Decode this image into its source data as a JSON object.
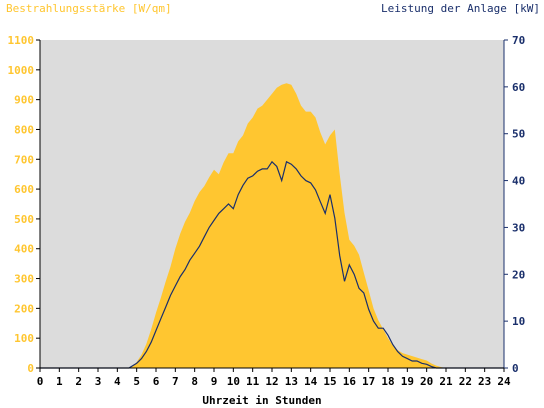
{
  "chart_data": {
    "type": "area",
    "left_axis_title": "Bestrahlungsstärke [W/qm]",
    "right_axis_title": "Leistung der Anlage [kW]",
    "xlabel": "Uhrzeit in Stunden",
    "x_ticks": [
      "0",
      "1",
      "2",
      "3",
      "4",
      "5",
      "6",
      "7",
      "8",
      "9",
      "10",
      "11",
      "12",
      "13",
      "14",
      "15",
      "16",
      "17",
      "18",
      "19",
      "20",
      "21",
      "22",
      "23",
      "24"
    ],
    "y_left_ticks": [
      "0",
      "100",
      "200",
      "300",
      "400",
      "500",
      "600",
      "700",
      "800",
      "900",
      "1000",
      "1100"
    ],
    "y_right_ticks": [
      "0",
      "10",
      "20",
      "30",
      "40",
      "50",
      "60",
      "70"
    ],
    "xlim": [
      0,
      24
    ],
    "ylim_left": [
      0,
      1100
    ],
    "ylim_right": [
      0,
      70
    ],
    "grid": false,
    "plot_background": "#dcdcdc",
    "series": [
      {
        "name": "Bestrahlungsstärke",
        "axis": "left",
        "style": "area",
        "color": "#ffc630",
        "x": [
          0,
          4.5,
          4.8,
          5.0,
          5.25,
          5.5,
          5.75,
          6.0,
          6.25,
          6.5,
          6.75,
          7.0,
          7.25,
          7.5,
          7.75,
          8.0,
          8.25,
          8.5,
          8.75,
          9.0,
          9.25,
          9.5,
          9.75,
          10.0,
          10.25,
          10.5,
          10.75,
          11.0,
          11.25,
          11.5,
          11.75,
          12.0,
          12.25,
          12.5,
          12.75,
          13.0,
          13.25,
          13.5,
          13.75,
          14.0,
          14.25,
          14.5,
          14.75,
          15.0,
          15.25,
          15.5,
          15.75,
          16.0,
          16.25,
          16.5,
          16.75,
          17.0,
          17.25,
          17.5,
          17.75,
          18.0,
          18.25,
          18.5,
          18.75,
          19.0,
          19.25,
          19.5,
          19.75,
          20.0,
          20.25,
          20.5,
          20.75,
          21.0,
          24
        ],
        "values": [
          0,
          0,
          5,
          20,
          45,
          80,
          130,
          185,
          235,
          290,
          340,
          400,
          450,
          490,
          520,
          560,
          590,
          610,
          640,
          665,
          650,
          690,
          720,
          720,
          760,
          780,
          820,
          840,
          870,
          880,
          900,
          920,
          940,
          950,
          955,
          950,
          920,
          880,
          860,
          860,
          840,
          790,
          750,
          780,
          800,
          650,
          520,
          430,
          410,
          380,
          320,
          260,
          200,
          160,
          130,
          100,
          75,
          60,
          50,
          45,
          40,
          35,
          30,
          25,
          15,
          8,
          3,
          0,
          0
        ]
      },
      {
        "name": "Leistung der Anlage",
        "axis": "right",
        "style": "line",
        "color": "#1a2f6b",
        "x": [
          0,
          4.6,
          5.0,
          5.25,
          5.5,
          5.75,
          6.0,
          6.25,
          6.5,
          6.75,
          7.0,
          7.25,
          7.5,
          7.75,
          8.0,
          8.25,
          8.5,
          8.75,
          9.0,
          9.25,
          9.5,
          9.75,
          10.0,
          10.25,
          10.5,
          10.75,
          11.0,
          11.25,
          11.5,
          11.75,
          12.0,
          12.25,
          12.5,
          12.75,
          13.0,
          13.25,
          13.5,
          13.75,
          14.0,
          14.25,
          14.5,
          14.75,
          15.0,
          15.25,
          15.5,
          15.75,
          16.0,
          16.25,
          16.5,
          16.75,
          17.0,
          17.25,
          17.5,
          17.75,
          18.0,
          18.25,
          18.5,
          18.75,
          19.0,
          19.25,
          19.5,
          19.75,
          20.0,
          20.25,
          20.5,
          24
        ],
        "values": [
          0,
          0,
          1,
          2,
          3.5,
          5.5,
          8,
          10.5,
          13,
          15.5,
          17.5,
          19.5,
          21,
          23,
          24.5,
          26,
          28,
          30,
          31.5,
          33,
          34,
          35,
          34,
          37,
          39,
          40.5,
          41,
          42,
          42.5,
          42.5,
          44,
          43,
          40,
          44,
          43.5,
          42.5,
          41,
          40,
          39.5,
          38,
          35.5,
          33,
          37,
          32,
          24,
          18.5,
          22,
          20,
          17,
          16,
          12.5,
          10,
          8.5,
          8.5,
          7,
          5,
          3.5,
          2.5,
          2,
          1.5,
          1.5,
          1,
          0.8,
          0.3,
          0,
          0
        ]
      }
    ]
  }
}
